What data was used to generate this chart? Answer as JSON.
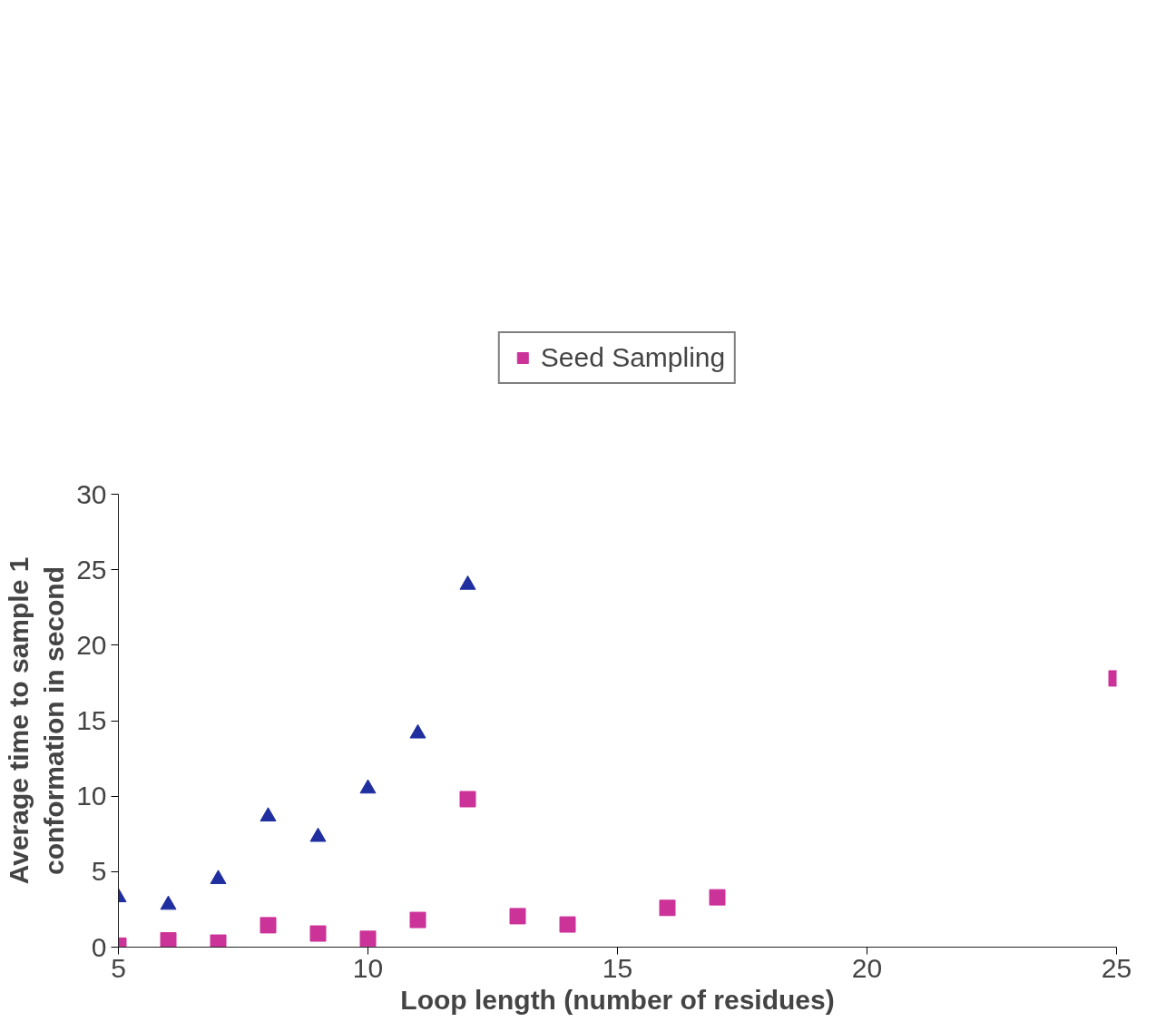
{
  "chart_data": {
    "type": "scatter",
    "xlabel": "Loop length (number of residues)",
    "ylabel": "Average time to sample 1\nconformation in second",
    "series": [
      {
        "color": "#1f2f9f",
        "marker": "triangle",
        "x": [
          5,
          6,
          7,
          8,
          9,
          10,
          11,
          12
        ],
        "values": [
          3.3,
          2.8,
          4.5,
          8.65,
          7.3,
          10.5,
          14.15,
          24.0
        ]
      },
      {
        "name": "Seed Sampling",
        "color": "#cc3399",
        "marker": "square",
        "x": [
          5,
          6,
          7,
          8,
          9,
          10,
          11,
          12,
          13,
          14,
          16,
          17,
          25
        ],
        "values": [
          0.1,
          0.45,
          0.3,
          1.45,
          0.9,
          0.55,
          1.8,
          9.8,
          2.05,
          1.5,
          2.6,
          3.3,
          17.8
        ]
      }
    ],
    "xlim": [
      5,
      25
    ],
    "xticks": [
      5,
      10,
      15,
      20,
      25
    ],
    "ylim": [
      0,
      30
    ],
    "yticks": [
      0,
      5,
      10,
      15,
      20,
      25,
      30
    ],
    "grid": false,
    "legend": "top"
  }
}
